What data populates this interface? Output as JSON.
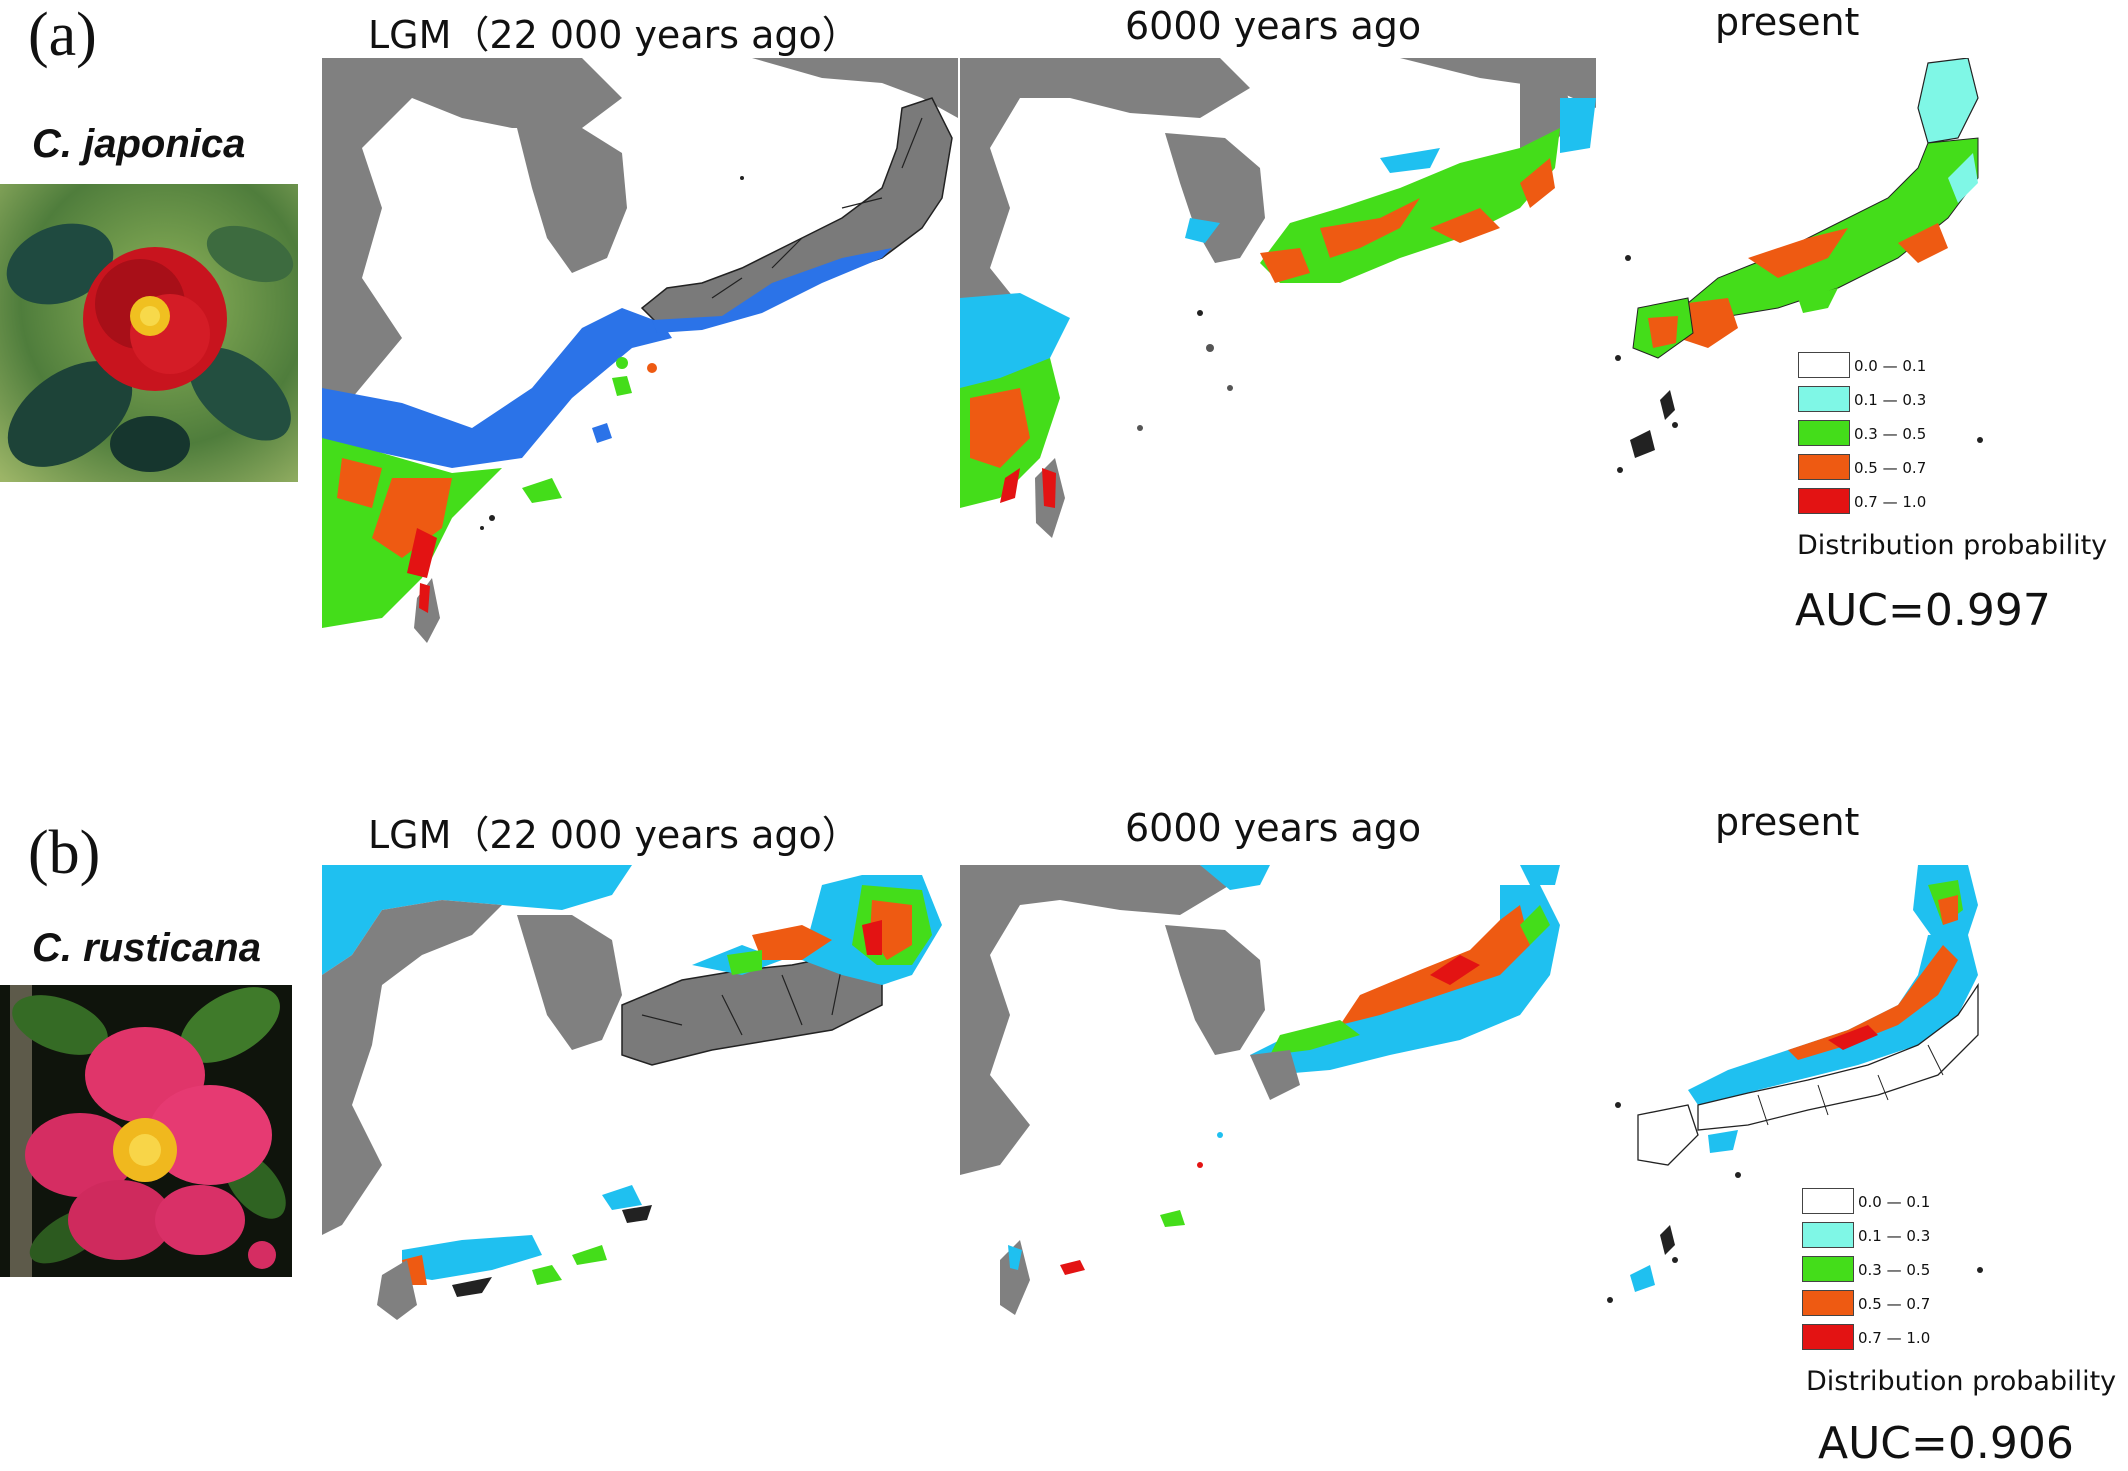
{
  "panels": [
    {
      "letter": "(a)",
      "species": "C. japonica",
      "flower_color": "#c8141e",
      "periods": [
        "LGM（22 000 years ago）",
        "6000 years ago",
        "present"
      ],
      "legend": {
        "title": "Distribution probability",
        "items": [
          {
            "label": "0.0 — 0.1",
            "color": "#ffffff"
          },
          {
            "label": "0.1 — 0.3",
            "color": "#7ff7e6"
          },
          {
            "label": "0.3 — 0.5",
            "color": "#44dd1a"
          },
          {
            "label": "0.5 — 0.7",
            "color": "#ee5a12"
          },
          {
            "label": "0.7 — 1.0",
            "color": "#e31313"
          }
        ]
      },
      "auc": "AUC=0.997"
    },
    {
      "letter": "(b)",
      "species": "C. rusticana",
      "flower_color": "#e0356a",
      "periods": [
        "LGM（22 000 years ago）",
        "6000 years ago",
        "present"
      ],
      "legend": {
        "title": "Distribution probability",
        "items": [
          {
            "label": "0.0 — 0.1",
            "color": "#ffffff"
          },
          {
            "label": "0.1 — 0.3",
            "color": "#7ff7e6"
          },
          {
            "label": "0.3 — 0.5",
            "color": "#44dd1a"
          },
          {
            "label": "0.5 — 0.7",
            "color": "#ee5a12"
          },
          {
            "label": "0.7 — 1.0",
            "color": "#e31313"
          }
        ]
      },
      "auc": "AUC=0.906"
    }
  ],
  "colors": {
    "land_gray": "#808080",
    "ocean": "#ffffff",
    "lgm_shelf_blue": "#2b73e8",
    "sky_blue": "#1fc0f0"
  }
}
